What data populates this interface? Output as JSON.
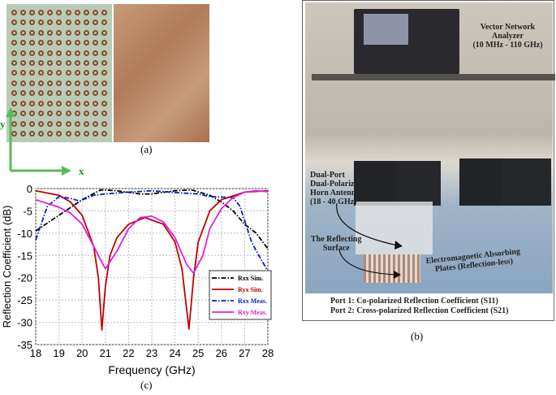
{
  "panel_a": {
    "caption": "(a)",
    "axis_y": "y",
    "axis_x": "x"
  },
  "panel_b": {
    "caption": "(b)",
    "vna_label": [
      "Vector Network",
      "Analyzer",
      "(10 MHz - 110 GHz)"
    ],
    "horn_label": [
      "Dual-Port",
      "Dual-Polarized",
      "Horn Antenna",
      "(18 - 40 GHz)"
    ],
    "surface_label": [
      "The Reflecting",
      "Surface"
    ],
    "absorber_label": [
      "Electromagnetic Absorbing",
      "Plates (Reflection-less)"
    ],
    "port1": "Port 1: Co-polarized Reflection Coefficient (S11)",
    "port2": "Port 2: Cross-polarized Reflection Coefficient (S21)"
  },
  "panel_c": {
    "caption": "(c)"
  },
  "chart_data": {
    "type": "line",
    "title": "",
    "xlabel": "Frequency (GHz)",
    "ylabel": "Reflection Coefficient (dB)",
    "xlim": [
      18,
      28
    ],
    "ylim": [
      -35,
      0
    ],
    "xticks": [
      18,
      19,
      20,
      21,
      22,
      23,
      24,
      25,
      26,
      27,
      28
    ],
    "yticks": [
      0,
      -5,
      -10,
      -15,
      -20,
      -25,
      -30,
      -35
    ],
    "grid": true,
    "legend_position": "bottom-right",
    "series": [
      {
        "name": "Rxx Sim.",
        "color": "#000000",
        "style": "dash-dot",
        "x": [
          18,
          19,
          20,
          20.8,
          21.5,
          22.5,
          23,
          24,
          24.7,
          25.5,
          26,
          26.5,
          27,
          27.5,
          28
        ],
        "y": [
          -9.5,
          -6,
          -2.5,
          -0.3,
          -0.5,
          -1.2,
          -1.2,
          -0.5,
          -0.3,
          -1.5,
          -3,
          -5,
          -8,
          -10,
          -13.5
        ]
      },
      {
        "name": "Ryx Sim.",
        "color": "#c00000",
        "style": "solid",
        "x": [
          18,
          19,
          19.5,
          20,
          20.5,
          20.7,
          20.85,
          21,
          21.2,
          21.5,
          22,
          22.7,
          23.5,
          24,
          24.3,
          24.6,
          24.8,
          25,
          25.5,
          26,
          27,
          28
        ],
        "y": [
          -0.5,
          -1.5,
          -3,
          -6,
          -13,
          -20,
          -31.7,
          -22,
          -15,
          -11,
          -8,
          -6.5,
          -8,
          -12,
          -18,
          -31.5,
          -20,
          -12,
          -5,
          -2.5,
          -0.8,
          -0.5
        ]
      },
      {
        "name": "Rxx Meas.",
        "color": "#0020c0",
        "style": "dash-dot-marker",
        "x": [
          18,
          18.5,
          19,
          19.5,
          19.9,
          20.5,
          21,
          22,
          23,
          24,
          25,
          25.5,
          26.5,
          26.8,
          27.3,
          27.5,
          28
        ],
        "y": [
          -11.5,
          -4,
          -1.8,
          -2.2,
          -2.8,
          -1.5,
          -1.2,
          -0.8,
          -0.5,
          -0.9,
          -1.2,
          -1.8,
          -2,
          -4,
          -12,
          -14,
          -18.5
        ]
      },
      {
        "name": "Rxy Meas.",
        "color": "#e020e0",
        "style": "solid-marker",
        "x": [
          18,
          19,
          19.5,
          20,
          20.5,
          21,
          21.5,
          22,
          22.5,
          23,
          23.5,
          24,
          24.5,
          24.8,
          25.2,
          25.5,
          26,
          26.5,
          27,
          27.5,
          28
        ],
        "y": [
          -2.5,
          -4.2,
          -5.5,
          -8,
          -13,
          -18,
          -14,
          -9,
          -6.5,
          -6.2,
          -7.5,
          -11,
          -17,
          -19,
          -15,
          -9,
          -4.5,
          -2,
          -0.8,
          -0.5,
          -0.7
        ]
      }
    ]
  }
}
